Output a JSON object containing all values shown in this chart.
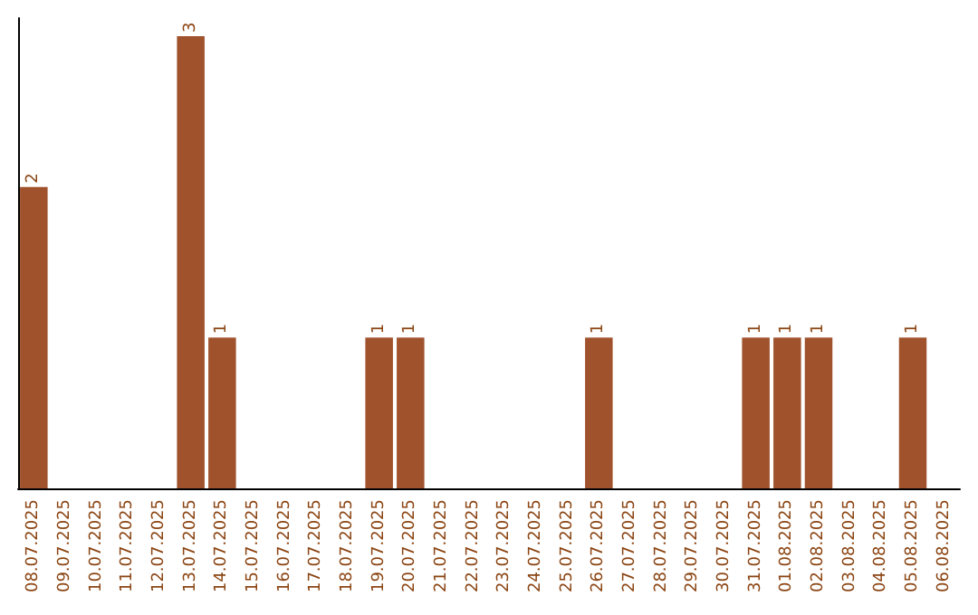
{
  "chart_data": {
    "type": "bar",
    "categories": [
      "08.07.2025",
      "09.07.2025",
      "10.07.2025",
      "11.07.2025",
      "12.07.2025",
      "13.07.2025",
      "14.07.2025",
      "15.07.2025",
      "16.07.2025",
      "17.07.2025",
      "18.07.2025",
      "19.07.2025",
      "20.07.2025",
      "21.07.2025",
      "22.07.2025",
      "23.07.2025",
      "24.07.2025",
      "25.07.2025",
      "26.07.2025",
      "27.07.2025",
      "28.07.2025",
      "29.07.2025",
      "30.07.2025",
      "31.07.2025",
      "01.08.2025",
      "02.08.2025",
      "03.08.2025",
      "04.08.2025",
      "05.08.2025",
      "06.08.2025"
    ],
    "values": [
      2,
      0,
      0,
      0,
      0,
      3,
      1,
      0,
      0,
      0,
      0,
      1,
      1,
      0,
      0,
      0,
      0,
      0,
      1,
      0,
      0,
      0,
      0,
      1,
      1,
      1,
      0,
      0,
      1,
      0
    ],
    "color": "#a0522d",
    "value_labels": [
      "2",
      null,
      null,
      null,
      null,
      "3",
      "1",
      null,
      null,
      null,
      null,
      "1",
      "1",
      null,
      null,
      null,
      null,
      null,
      "1",
      null,
      null,
      null,
      null,
      "1",
      "1",
      "1",
      null,
      null,
      "1",
      null
    ],
    "tick_labels": "x"
  }
}
